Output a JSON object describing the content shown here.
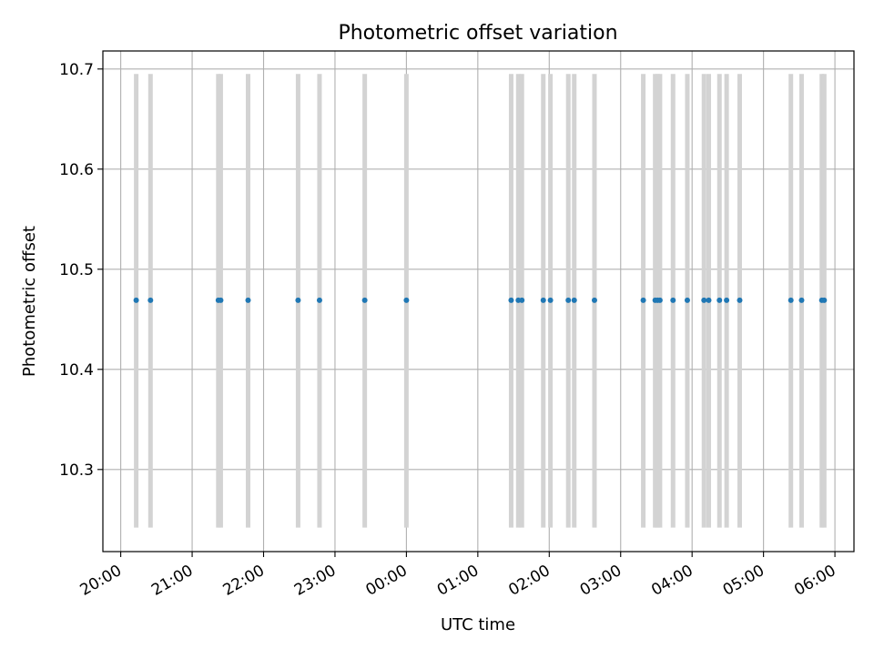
{
  "chart_data": {
    "type": "scatter",
    "title": "Photometric offset variation",
    "xlabel": "UTC time",
    "ylabel": "Photometric offset",
    "x_axis_kind": "time",
    "x_ticks": [
      "20:00",
      "21:00",
      "22:00",
      "23:00",
      "00:00",
      "01:00",
      "02:00",
      "03:00",
      "04:00",
      "05:00",
      "06:00"
    ],
    "y_ticks": [
      "10.3",
      "10.4",
      "10.5",
      "10.6",
      "10.7"
    ],
    "xlim": [
      "19:45",
      "06:16"
    ],
    "ylim": [
      10.218,
      10.718
    ],
    "grid": true,
    "band_range": [
      10.242,
      10.695
    ],
    "series": [
      {
        "x": [
          "20:13",
          "20:25",
          "21:22",
          "21:24",
          "21:47",
          "22:29",
          "22:47",
          "23:25",
          "00:00",
          "01:28",
          "01:34",
          "01:37",
          "01:55",
          "02:01",
          "02:16",
          "02:21",
          "02:38",
          "03:19",
          "03:29",
          "03:31",
          "03:33",
          "03:44",
          "03:56",
          "04:10",
          "04:14",
          "04:23",
          "04:29",
          "04:40",
          "05:23",
          "05:32",
          "05:49",
          "05:51"
        ],
        "y": [
          10.469,
          10.469,
          10.469,
          10.469,
          10.469,
          10.469,
          10.469,
          10.469,
          10.469,
          10.469,
          10.469,
          10.469,
          10.469,
          10.469,
          10.469,
          10.469,
          10.469,
          10.469,
          10.469,
          10.469,
          10.469,
          10.469,
          10.469,
          10.469,
          10.469,
          10.469,
          10.469,
          10.469,
          10.469,
          10.469,
          10.469,
          10.469
        ],
        "color": "#1f77b4"
      }
    ],
    "band_color": "#d3d3d3",
    "grid_color": "#b0b0b0"
  }
}
